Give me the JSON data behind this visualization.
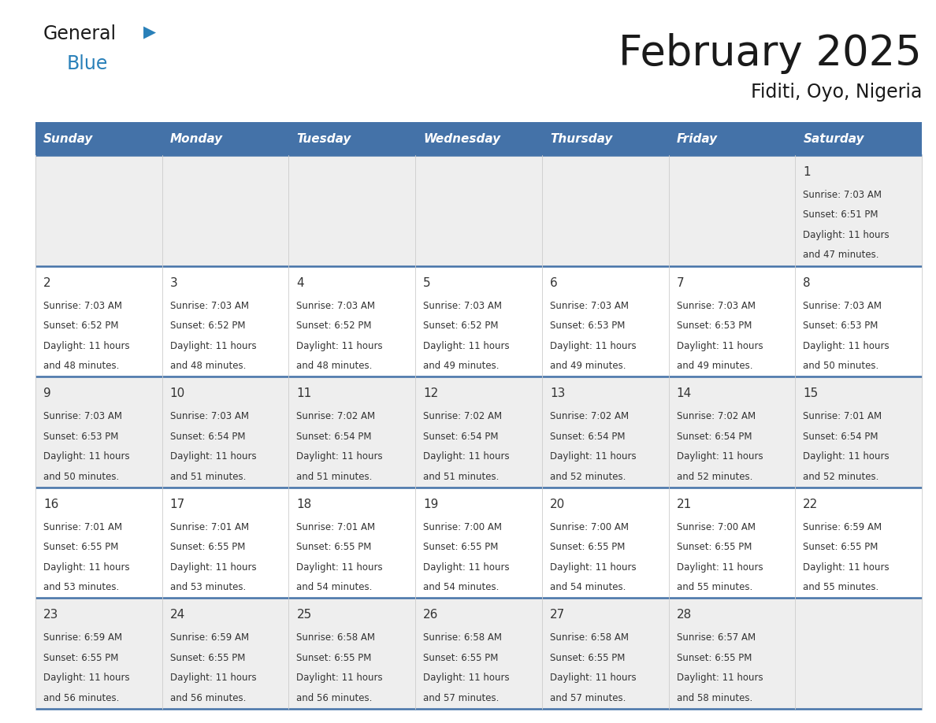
{
  "title": "February 2025",
  "subtitle": "Fiditi, Oyo, Nigeria",
  "days_of_week": [
    "Sunday",
    "Monday",
    "Tuesday",
    "Wednesday",
    "Thursday",
    "Friday",
    "Saturday"
  ],
  "header_bg": "#4472a8",
  "header_text": "#ffffff",
  "row_bg": "#eeeeee",
  "row_bg_alt": "#ffffff",
  "border_color": "#4472a8",
  "day_number_color": "#333333",
  "info_text_color": "#333333",
  "logo_general_color": "#1a1a1a",
  "logo_blue_color": "#2980b9",
  "title_color": "#1a1a1a",
  "calendar_data": [
    {
      "day": 1,
      "col": 6,
      "row": 0,
      "sunrise": "7:03 AM",
      "sunset": "6:51 PM",
      "daylight_h": "11 hours",
      "daylight_m": "47 minutes."
    },
    {
      "day": 2,
      "col": 0,
      "row": 1,
      "sunrise": "7:03 AM",
      "sunset": "6:52 PM",
      "daylight_h": "11 hours",
      "daylight_m": "48 minutes."
    },
    {
      "day": 3,
      "col": 1,
      "row": 1,
      "sunrise": "7:03 AM",
      "sunset": "6:52 PM",
      "daylight_h": "11 hours",
      "daylight_m": "48 minutes."
    },
    {
      "day": 4,
      "col": 2,
      "row": 1,
      "sunrise": "7:03 AM",
      "sunset": "6:52 PM",
      "daylight_h": "11 hours",
      "daylight_m": "48 minutes."
    },
    {
      "day": 5,
      "col": 3,
      "row": 1,
      "sunrise": "7:03 AM",
      "sunset": "6:52 PM",
      "daylight_h": "11 hours",
      "daylight_m": "49 minutes."
    },
    {
      "day": 6,
      "col": 4,
      "row": 1,
      "sunrise": "7:03 AM",
      "sunset": "6:53 PM",
      "daylight_h": "11 hours",
      "daylight_m": "49 minutes."
    },
    {
      "day": 7,
      "col": 5,
      "row": 1,
      "sunrise": "7:03 AM",
      "sunset": "6:53 PM",
      "daylight_h": "11 hours",
      "daylight_m": "49 minutes."
    },
    {
      "day": 8,
      "col": 6,
      "row": 1,
      "sunrise": "7:03 AM",
      "sunset": "6:53 PM",
      "daylight_h": "11 hours",
      "daylight_m": "50 minutes."
    },
    {
      "day": 9,
      "col": 0,
      "row": 2,
      "sunrise": "7:03 AM",
      "sunset": "6:53 PM",
      "daylight_h": "11 hours",
      "daylight_m": "50 minutes."
    },
    {
      "day": 10,
      "col": 1,
      "row": 2,
      "sunrise": "7:03 AM",
      "sunset": "6:54 PM",
      "daylight_h": "11 hours",
      "daylight_m": "51 minutes."
    },
    {
      "day": 11,
      "col": 2,
      "row": 2,
      "sunrise": "7:02 AM",
      "sunset": "6:54 PM",
      "daylight_h": "11 hours",
      "daylight_m": "51 minutes."
    },
    {
      "day": 12,
      "col": 3,
      "row": 2,
      "sunrise": "7:02 AM",
      "sunset": "6:54 PM",
      "daylight_h": "11 hours",
      "daylight_m": "51 minutes."
    },
    {
      "day": 13,
      "col": 4,
      "row": 2,
      "sunrise": "7:02 AM",
      "sunset": "6:54 PM",
      "daylight_h": "11 hours",
      "daylight_m": "52 minutes."
    },
    {
      "day": 14,
      "col": 5,
      "row": 2,
      "sunrise": "7:02 AM",
      "sunset": "6:54 PM",
      "daylight_h": "11 hours",
      "daylight_m": "52 minutes."
    },
    {
      "day": 15,
      "col": 6,
      "row": 2,
      "sunrise": "7:01 AM",
      "sunset": "6:54 PM",
      "daylight_h": "11 hours",
      "daylight_m": "52 minutes."
    },
    {
      "day": 16,
      "col": 0,
      "row": 3,
      "sunrise": "7:01 AM",
      "sunset": "6:55 PM",
      "daylight_h": "11 hours",
      "daylight_m": "53 minutes."
    },
    {
      "day": 17,
      "col": 1,
      "row": 3,
      "sunrise": "7:01 AM",
      "sunset": "6:55 PM",
      "daylight_h": "11 hours",
      "daylight_m": "53 minutes."
    },
    {
      "day": 18,
      "col": 2,
      "row": 3,
      "sunrise": "7:01 AM",
      "sunset": "6:55 PM",
      "daylight_h": "11 hours",
      "daylight_m": "54 minutes."
    },
    {
      "day": 19,
      "col": 3,
      "row": 3,
      "sunrise": "7:00 AM",
      "sunset": "6:55 PM",
      "daylight_h": "11 hours",
      "daylight_m": "54 minutes."
    },
    {
      "day": 20,
      "col": 4,
      "row": 3,
      "sunrise": "7:00 AM",
      "sunset": "6:55 PM",
      "daylight_h": "11 hours",
      "daylight_m": "54 minutes."
    },
    {
      "day": 21,
      "col": 5,
      "row": 3,
      "sunrise": "7:00 AM",
      "sunset": "6:55 PM",
      "daylight_h": "11 hours",
      "daylight_m": "55 minutes."
    },
    {
      "day": 22,
      "col": 6,
      "row": 3,
      "sunrise": "6:59 AM",
      "sunset": "6:55 PM",
      "daylight_h": "11 hours",
      "daylight_m": "55 minutes."
    },
    {
      "day": 23,
      "col": 0,
      "row": 4,
      "sunrise": "6:59 AM",
      "sunset": "6:55 PM",
      "daylight_h": "11 hours",
      "daylight_m": "56 minutes."
    },
    {
      "day": 24,
      "col": 1,
      "row": 4,
      "sunrise": "6:59 AM",
      "sunset": "6:55 PM",
      "daylight_h": "11 hours",
      "daylight_m": "56 minutes."
    },
    {
      "day": 25,
      "col": 2,
      "row": 4,
      "sunrise": "6:58 AM",
      "sunset": "6:55 PM",
      "daylight_h": "11 hours",
      "daylight_m": "56 minutes."
    },
    {
      "day": 26,
      "col": 3,
      "row": 4,
      "sunrise": "6:58 AM",
      "sunset": "6:55 PM",
      "daylight_h": "11 hours",
      "daylight_m": "57 minutes."
    },
    {
      "day": 27,
      "col": 4,
      "row": 4,
      "sunrise": "6:58 AM",
      "sunset": "6:55 PM",
      "daylight_h": "11 hours",
      "daylight_m": "57 minutes."
    },
    {
      "day": 28,
      "col": 5,
      "row": 4,
      "sunrise": "6:57 AM",
      "sunset": "6:55 PM",
      "daylight_h": "11 hours",
      "daylight_m": "58 minutes."
    }
  ],
  "fig_width": 11.88,
  "fig_height": 9.18,
  "dpi": 100
}
